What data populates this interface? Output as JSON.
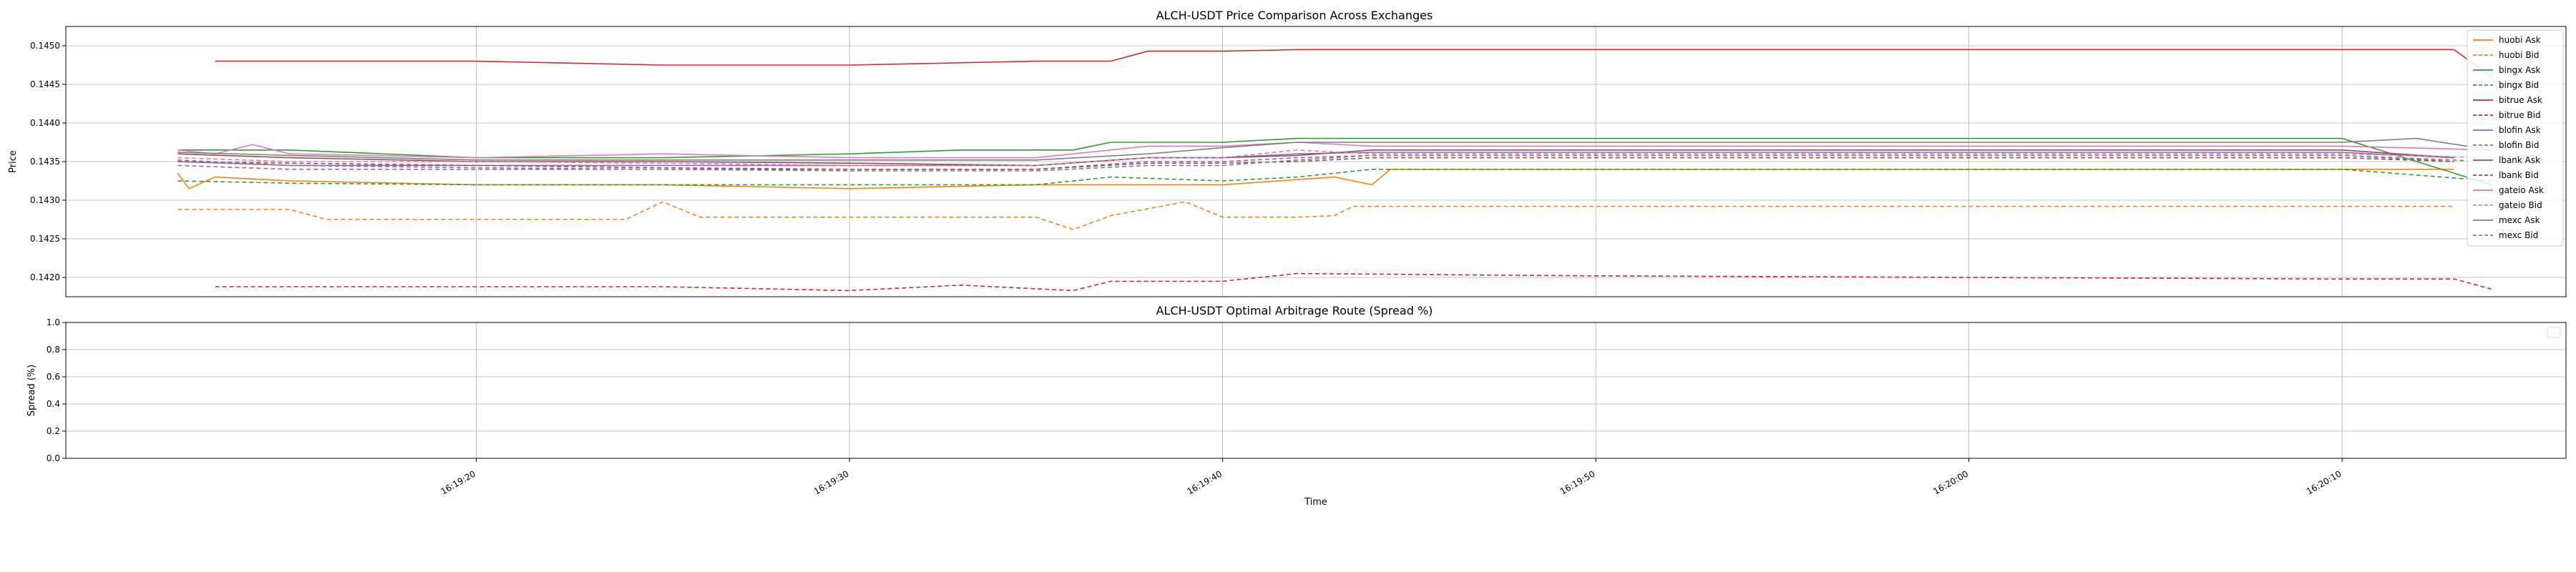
{
  "chart_data": [
    {
      "type": "line",
      "title": "ALCH-USDT Price Comparison Across Exchanges",
      "xlabel": "",
      "ylabel": "Price",
      "ylim": [
        0.14175,
        0.14525
      ],
      "yticks": [
        "0.1420",
        "0.1425",
        "0.1430",
        "0.1435",
        "0.1440",
        "0.1445",
        "0.1450"
      ],
      "ytick_values": [
        0.142,
        0.1425,
        0.143,
        0.1435,
        0.144,
        0.1445,
        0.145
      ],
      "xlim": [
        "16:19:09",
        "16:20:16"
      ],
      "grid": true,
      "legend_position": "right",
      "series": [
        {
          "name": "huobi Ask",
          "color": "#ff7f0e",
          "dash": false,
          "x": [
            "16:19:12",
            "16:19:12.3",
            "16:19:13",
            "16:19:15",
            "16:19:20",
            "16:19:25",
            "16:19:30",
            "16:19:35",
            "16:19:40",
            "16:19:43",
            "16:19:44",
            "16:19:44.5",
            "16:19:50",
            "16:20:00",
            "16:20:10",
            "16:20:13"
          ],
          "y": [
            0.14335,
            0.14315,
            0.1433,
            0.14325,
            0.1432,
            0.1432,
            0.14315,
            0.1432,
            0.1432,
            0.1433,
            0.1432,
            0.1434,
            0.1434,
            0.1434,
            0.1434,
            0.1434
          ]
        },
        {
          "name": "huobi Bid",
          "color": "#ff7f0e",
          "dash": true,
          "x": [
            "16:19:12",
            "16:19:15",
            "16:19:16",
            "16:19:20",
            "16:19:24",
            "16:19:25",
            "16:19:26",
            "16:19:30",
            "16:19:35",
            "16:19:36",
            "16:19:37",
            "16:19:39",
            "16:19:40",
            "16:19:42",
            "16:19:43",
            "16:19:43.5",
            "16:19:50",
            "16:20:00",
            "16:20:10",
            "16:20:13"
          ],
          "y": [
            0.14288,
            0.14288,
            0.14275,
            0.14275,
            0.14275,
            0.14298,
            0.14278,
            0.14278,
            0.14278,
            0.14262,
            0.1428,
            0.14298,
            0.14278,
            0.14278,
            0.1428,
            0.14292,
            0.14292,
            0.14292,
            0.14292,
            0.14292
          ]
        },
        {
          "name": "bingx Ask",
          "color": "#2ca02c",
          "dash": false,
          "x": [
            "16:19:12",
            "16:19:15",
            "16:19:20",
            "16:19:25",
            "16:19:30",
            "16:19:33",
            "16:19:36",
            "16:19:37",
            "16:19:38",
            "16:19:40",
            "16:19:42",
            "16:19:44",
            "16:19:50",
            "16:20:00",
            "16:20:10",
            "16:20:14"
          ],
          "y": [
            0.14365,
            0.14365,
            0.14355,
            0.14355,
            0.1436,
            0.14365,
            0.14365,
            0.14375,
            0.14375,
            0.14375,
            0.1438,
            0.1438,
            0.1438,
            0.1438,
            0.1438,
            0.1432
          ]
        },
        {
          "name": "bingx Bid",
          "color": "#2ca02c",
          "dash": true,
          "x": [
            "16:19:12",
            "16:19:15",
            "16:19:20",
            "16:19:25",
            "16:19:30",
            "16:19:35",
            "16:19:37",
            "16:19:40",
            "16:19:42",
            "16:19:44",
            "16:19:50",
            "16:20:00",
            "16:20:10",
            "16:20:14"
          ],
          "y": [
            0.14325,
            0.14322,
            0.1432,
            0.1432,
            0.1432,
            0.1432,
            0.1433,
            0.14325,
            0.1433,
            0.1434,
            0.1434,
            0.1434,
            0.1434,
            0.14325
          ]
        },
        {
          "name": "bitrue Ask",
          "color": "#d62728",
          "dash": false,
          "x": [
            "16:19:13",
            "16:19:20",
            "16:19:25",
            "16:19:30",
            "16:19:35",
            "16:19:37",
            "16:19:38",
            "16:19:40",
            "16:19:42",
            "16:19:50",
            "16:20:00",
            "16:20:10",
            "16:20:13",
            "16:20:14"
          ],
          "y": [
            0.1448,
            0.1448,
            0.14475,
            0.14475,
            0.1448,
            0.1448,
            0.14493,
            0.14493,
            0.14495,
            0.14495,
            0.14495,
            0.14495,
            0.14495,
            0.1446
          ]
        },
        {
          "name": "bitrue Bid",
          "color": "#d62728",
          "dash": true,
          "x": [
            "16:19:13",
            "16:19:20",
            "16:19:25",
            "16:19:30",
            "16:19:33",
            "16:19:36",
            "16:19:37",
            "16:19:40",
            "16:19:42",
            "16:19:50",
            "16:20:00",
            "16:20:10",
            "16:20:13",
            "16:20:14"
          ],
          "y": [
            0.14188,
            0.14188,
            0.14188,
            0.14183,
            0.1419,
            0.14183,
            0.14195,
            0.14195,
            0.14205,
            0.14202,
            0.142,
            0.14198,
            0.14198,
            0.14185
          ]
        },
        {
          "name": "blofin Ask",
          "color": "#9467bd",
          "dash": false,
          "x": [
            "16:19:12",
            "16:19:15",
            "16:19:20",
            "16:19:25",
            "16:19:30",
            "16:19:35",
            "16:19:38",
            "16:19:40",
            "16:19:42",
            "16:19:44",
            "16:19:50",
            "16:20:00",
            "16:20:10",
            "16:20:13"
          ],
          "y": [
            0.1435,
            0.14345,
            0.14345,
            0.14345,
            0.14345,
            0.14345,
            0.14355,
            0.14355,
            0.1436,
            0.14362,
            0.14362,
            0.14362,
            0.14362,
            0.14355
          ]
        },
        {
          "name": "blofin Bid",
          "color": "#9467bd",
          "dash": true,
          "x": [
            "16:19:12",
            "16:19:15",
            "16:19:20",
            "16:19:25",
            "16:19:30",
            "16:19:35",
            "16:19:38",
            "16:19:40",
            "16:19:42",
            "16:19:44",
            "16:19:50",
            "16:20:00",
            "16:20:10",
            "16:20:13"
          ],
          "y": [
            0.14345,
            0.1434,
            0.1434,
            0.1434,
            0.1434,
            0.1434,
            0.1435,
            0.1435,
            0.14355,
            0.14358,
            0.14358,
            0.14358,
            0.14358,
            0.1435
          ]
        },
        {
          "name": "lbank Ask",
          "color": "#8c564b",
          "dash": false,
          "x": [
            "16:19:12",
            "16:19:15",
            "16:19:20",
            "16:19:25",
            "16:19:30",
            "16:19:35",
            "16:19:38",
            "16:19:40",
            "16:19:42",
            "16:19:44",
            "16:19:50",
            "16:20:00",
            "16:20:10",
            "16:20:13"
          ],
          "y": [
            0.1436,
            0.14355,
            0.1435,
            0.1435,
            0.14348,
            0.14345,
            0.14355,
            0.14355,
            0.14358,
            0.14365,
            0.14365,
            0.14365,
            0.14365,
            0.14355
          ]
        },
        {
          "name": "lbank Bid",
          "color": "#8c564b",
          "dash": true,
          "x": [
            "16:19:12",
            "16:19:15",
            "16:19:20",
            "16:19:25",
            "16:19:30",
            "16:19:35",
            "16:19:38",
            "16:19:40",
            "16:19:42",
            "16:19:44",
            "16:19:50",
            "16:20:00",
            "16:20:10",
            "16:20:13"
          ],
          "y": [
            0.1435,
            0.14348,
            0.14345,
            0.14342,
            0.1434,
            0.1434,
            0.14348,
            0.14348,
            0.1435,
            0.14355,
            0.14355,
            0.14355,
            0.14355,
            0.1435
          ]
        },
        {
          "name": "gateio Ask",
          "color": "#e377c2",
          "dash": false,
          "x": [
            "16:19:12",
            "16:19:13",
            "16:19:14",
            "16:19:15",
            "16:19:20",
            "16:19:25",
            "16:19:30",
            "16:19:35",
            "16:19:38",
            "16:19:40",
            "16:19:42",
            "16:19:44",
            "16:19:50",
            "16:20:00",
            "16:20:10",
            "16:20:14"
          ],
          "y": [
            0.14365,
            0.1436,
            0.14372,
            0.1436,
            0.14355,
            0.1436,
            0.14355,
            0.14355,
            0.1437,
            0.1437,
            0.14375,
            0.1437,
            0.1437,
            0.1437,
            0.1437,
            0.14365
          ]
        },
        {
          "name": "gateio Bid",
          "color": "#e377c2",
          "dash": true,
          "x": [
            "16:19:12",
            "16:19:15",
            "16:19:20",
            "16:19:25",
            "16:19:30",
            "16:19:35",
            "16:19:38",
            "16:19:40",
            "16:19:42",
            "16:19:44",
            "16:19:50",
            "16:20:00",
            "16:20:10",
            "16:20:14"
          ],
          "y": [
            0.14355,
            0.1435,
            0.1435,
            0.14348,
            0.14345,
            0.14345,
            0.14355,
            0.14355,
            0.14365,
            0.1436,
            0.1436,
            0.1436,
            0.1436,
            0.14355
          ]
        },
        {
          "name": "mexc Ask",
          "color": "#7f7f7f",
          "dash": false,
          "x": [
            "16:19:12",
            "16:19:15",
            "16:19:20",
            "16:19:25",
            "16:19:30",
            "16:19:35",
            "16:19:38",
            "16:19:40",
            "16:19:42",
            "16:19:44",
            "16:19:50",
            "16:20:00",
            "16:20:10",
            "16:20:12",
            "16:20:14"
          ],
          "y": [
            0.14362,
            0.14358,
            0.14352,
            0.14352,
            0.14352,
            0.14352,
            0.1436,
            0.14368,
            0.14375,
            0.14375,
            0.14375,
            0.14375,
            0.14375,
            0.1438,
            0.14365
          ]
        },
        {
          "name": "mexc Bid",
          "color": "#7f7f7f",
          "dash": true,
          "x": [
            "16:19:12",
            "16:19:15",
            "16:19:20",
            "16:19:25",
            "16:19:30",
            "16:19:35",
            "16:19:38",
            "16:19:40",
            "16:19:42",
            "16:19:44",
            "16:19:50",
            "16:20:00",
            "16:20:10",
            "16:20:14"
          ],
          "y": [
            0.14352,
            0.14345,
            0.14342,
            0.1434,
            0.14338,
            0.14338,
            0.14345,
            0.14345,
            0.14352,
            0.14358,
            0.14358,
            0.14358,
            0.14358,
            0.1435
          ]
        }
      ]
    },
    {
      "type": "line",
      "title": "ALCH-USDT Optimal Arbitrage Route (Spread %)",
      "xlabel": "Time",
      "ylabel": "Spread (%)",
      "ylim": [
        0.0,
        1.0
      ],
      "yticks": [
        "0.0",
        "0.2",
        "0.4",
        "0.6",
        "0.8",
        "1.0"
      ],
      "ytick_values": [
        0.0,
        0.2,
        0.4,
        0.6,
        0.8,
        1.0
      ],
      "xlim": [
        "16:19:09",
        "16:20:16"
      ],
      "xticks": [
        "16:19:20",
        "16:19:30",
        "16:19:40",
        "16:19:50",
        "16:20:00",
        "16:20:10"
      ],
      "grid": true,
      "series": []
    }
  ]
}
